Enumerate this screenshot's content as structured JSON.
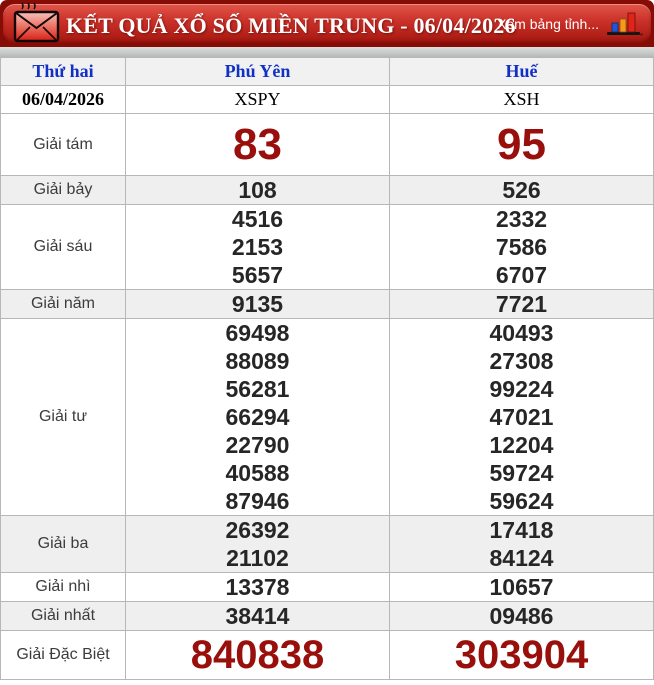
{
  "header": {
    "title": "KẾT QUẢ XỔ SỐ MIỀN TRUNG - 06/04/2026",
    "view_link": "Xem bảng tỉnh...",
    "icons": {
      "left": "envelope-icon",
      "right": "bar-chart-icon"
    },
    "colors": {
      "bar_red": "#cb322a",
      "backdrop_red": "#850d06",
      "title_text": "#ffffff"
    }
  },
  "table": {
    "columns": [
      "Thứ hai",
      "Phú Yên",
      "Huế"
    ],
    "date": "06/04/2026",
    "codes": [
      "XSPY",
      "XSH"
    ],
    "prizes": [
      {
        "label": "Giải tám",
        "size": "big",
        "values": [
          [
            "83"
          ],
          [
            "95"
          ]
        ]
      },
      {
        "label": "Giải bảy",
        "size": "normal",
        "values": [
          [
            "108"
          ],
          [
            "526"
          ]
        ]
      },
      {
        "label": "Giải sáu",
        "size": "normal",
        "values": [
          [
            "4516",
            "2153",
            "5657"
          ],
          [
            "2332",
            "7586",
            "6707"
          ]
        ]
      },
      {
        "label": "Giải năm",
        "size": "normal",
        "values": [
          [
            "9135"
          ],
          [
            "7721"
          ]
        ]
      },
      {
        "label": "Giải tư",
        "size": "normal",
        "values": [
          [
            "69498",
            "88089",
            "56281",
            "66294",
            "22790",
            "40588",
            "87946"
          ],
          [
            "40493",
            "27308",
            "99224",
            "47021",
            "12204",
            "59724",
            "59624"
          ]
        ]
      },
      {
        "label": "Giải ba",
        "size": "normal",
        "values": [
          [
            "26392",
            "21102"
          ],
          [
            "17418",
            "84124"
          ]
        ]
      },
      {
        "label": "Giải nhì",
        "size": "normal",
        "values": [
          [
            "13378"
          ],
          [
            "10657"
          ]
        ]
      },
      {
        "label": "Giải nhất",
        "size": "normal",
        "values": [
          [
            "38414"
          ],
          [
            "09486"
          ]
        ]
      },
      {
        "label": "Giải Đặc Biệt",
        "size": "special",
        "values": [
          [
            "840838"
          ],
          [
            "303904"
          ]
        ]
      }
    ],
    "colors": {
      "header_text_blue": "#1130c6",
      "number_dark": "#262626",
      "highlight_red": "#990f0b",
      "shade_row": "#efefef",
      "border": "#b7b7b7"
    }
  }
}
